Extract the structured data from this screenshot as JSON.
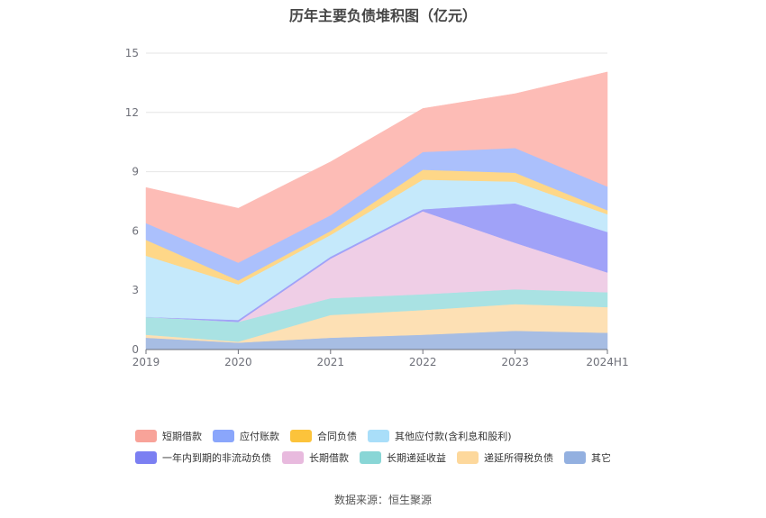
{
  "title": "历年主要负债堆积图（亿元）",
  "source": "数据来源：恒生聚源",
  "chart_data": {
    "type": "area",
    "stacked": true,
    "x": [
      "2019",
      "2020",
      "2021",
      "2022",
      "2023",
      "2024H1"
    ],
    "ylim": [
      0,
      15
    ],
    "yticks": [
      0,
      3,
      6,
      9,
      12,
      15
    ],
    "grid": true,
    "legend_position": "bottom",
    "series": [
      {
        "name": "其它",
        "color": "#a7bde3",
        "values": [
          0.6,
          0.35,
          0.6,
          0.75,
          0.95,
          0.85
        ]
      },
      {
        "name": "递延所得税负债",
        "color": "#fde0b4",
        "values": [
          0.15,
          0.05,
          1.15,
          1.25,
          1.35,
          1.3
        ]
      },
      {
        "name": "长期递延收益",
        "color": "#a9e2e3",
        "values": [
          0.9,
          1.0,
          0.85,
          0.8,
          0.75,
          0.75
        ]
      },
      {
        "name": "长期借款",
        "color": "#efcee6",
        "values": [
          0.0,
          0.0,
          2.0,
          4.2,
          2.35,
          1.0
        ]
      },
      {
        "name": "一年内到期的非流动负债",
        "color": "#a0a2f8",
        "values": [
          0.0,
          0.1,
          0.1,
          0.1,
          2.0,
          2.05
        ]
      },
      {
        "name": "其他应付款(含利息和股利)",
        "color": "#c5e9fb",
        "values": [
          3.1,
          1.8,
          1.1,
          1.5,
          1.1,
          0.9
        ]
      },
      {
        "name": "合同负债",
        "color": "#fed788",
        "values": [
          0.8,
          0.2,
          0.2,
          0.5,
          0.45,
          0.2
        ]
      },
      {
        "name": "应付账款",
        "color": "#abc0fc",
        "values": [
          0.85,
          0.9,
          0.8,
          0.9,
          1.25,
          1.2
        ]
      },
      {
        "name": "短期借款",
        "color": "#fdbcb6",
        "values": [
          1.8,
          2.75,
          2.7,
          2.2,
          2.75,
          5.8
        ]
      }
    ],
    "legend": [
      [
        {
          "name": "短期借款",
          "color": "#f8a399"
        },
        {
          "name": "应付账款",
          "color": "#8aa6fb"
        },
        {
          "name": "合同负债",
          "color": "#fcc33b"
        },
        {
          "name": "其他应付款(含利息和股利)",
          "color": "#a9def9"
        }
      ],
      [
        {
          "name": "一年内到期的非流动负债",
          "color": "#7b7ff2"
        },
        {
          "name": "长期借款",
          "color": "#e8bade"
        },
        {
          "name": "长期递延收益",
          "color": "#89d6d6"
        },
        {
          "name": "递延所得税负债",
          "color": "#fdd89c"
        },
        {
          "name": "其它",
          "color": "#93b0e0"
        }
      ]
    ]
  }
}
